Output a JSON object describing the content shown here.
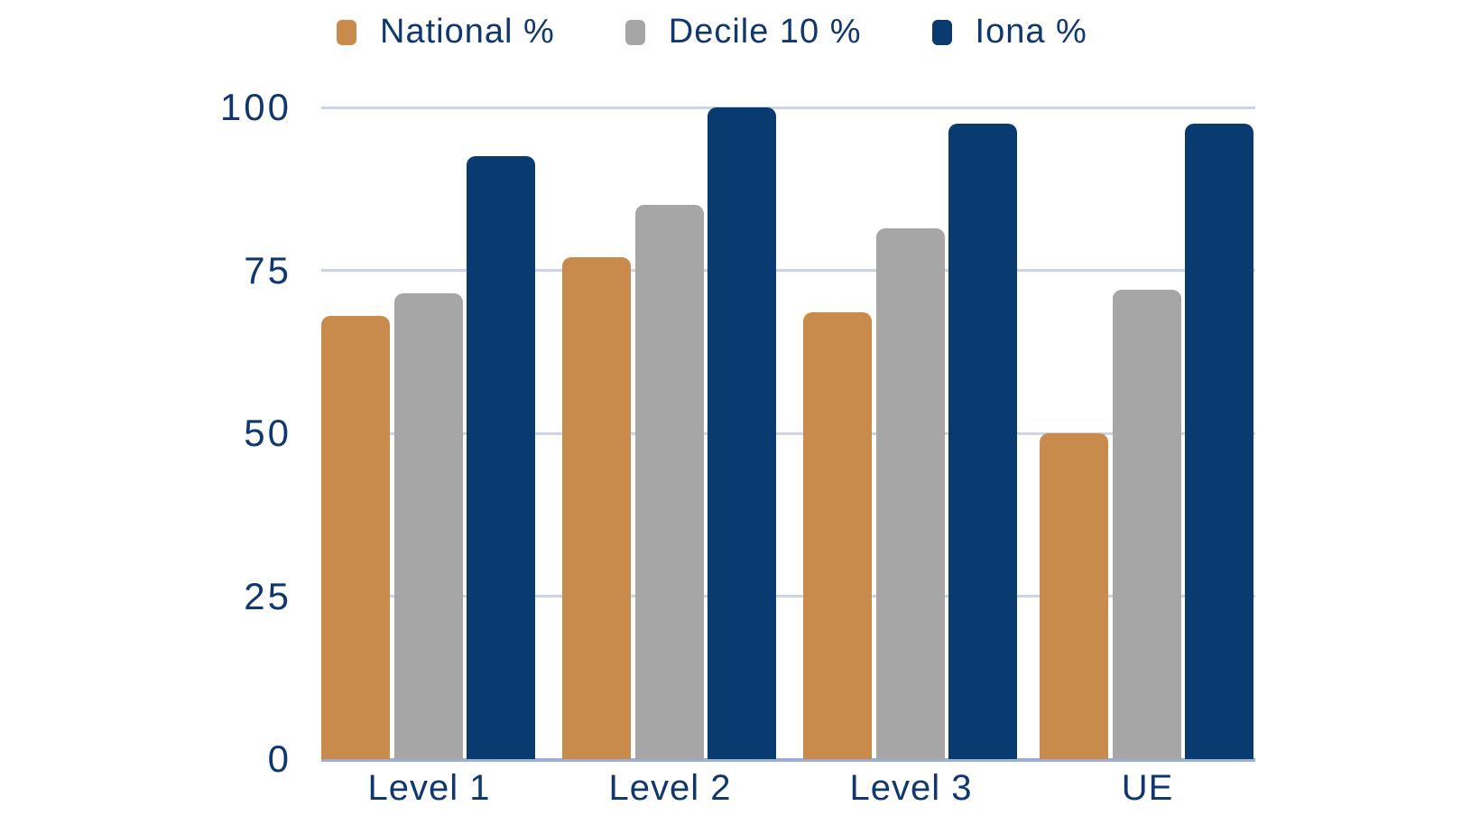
{
  "chart_data": {
    "type": "bar",
    "title": "",
    "categories": [
      "Level 1",
      "Level 2",
      "Level 3",
      "UE"
    ],
    "series": [
      {
        "name": "National %",
        "color": "#C98B4B",
        "values": [
          68,
          77,
          68.5,
          50
        ]
      },
      {
        "name": "Decile 10 %",
        "color": "#A6A6A6",
        "values": [
          71.5,
          85,
          81.5,
          72
        ]
      },
      {
        "name": "Iona %",
        "color": "#0A3B70",
        "values": [
          92.5,
          100,
          97.5,
          97.5
        ]
      }
    ],
    "xlabel": "",
    "ylabel": "",
    "ylim": [
      0,
      100
    ],
    "yticks": [
      0,
      25,
      50,
      75,
      100
    ],
    "grid": "horizontal",
    "legend_position": "top"
  },
  "colors": {
    "text": "#11386E",
    "gridline": "#CBD5E6",
    "baseline": "#9BAFD0",
    "background": "#FFFFFF"
  }
}
